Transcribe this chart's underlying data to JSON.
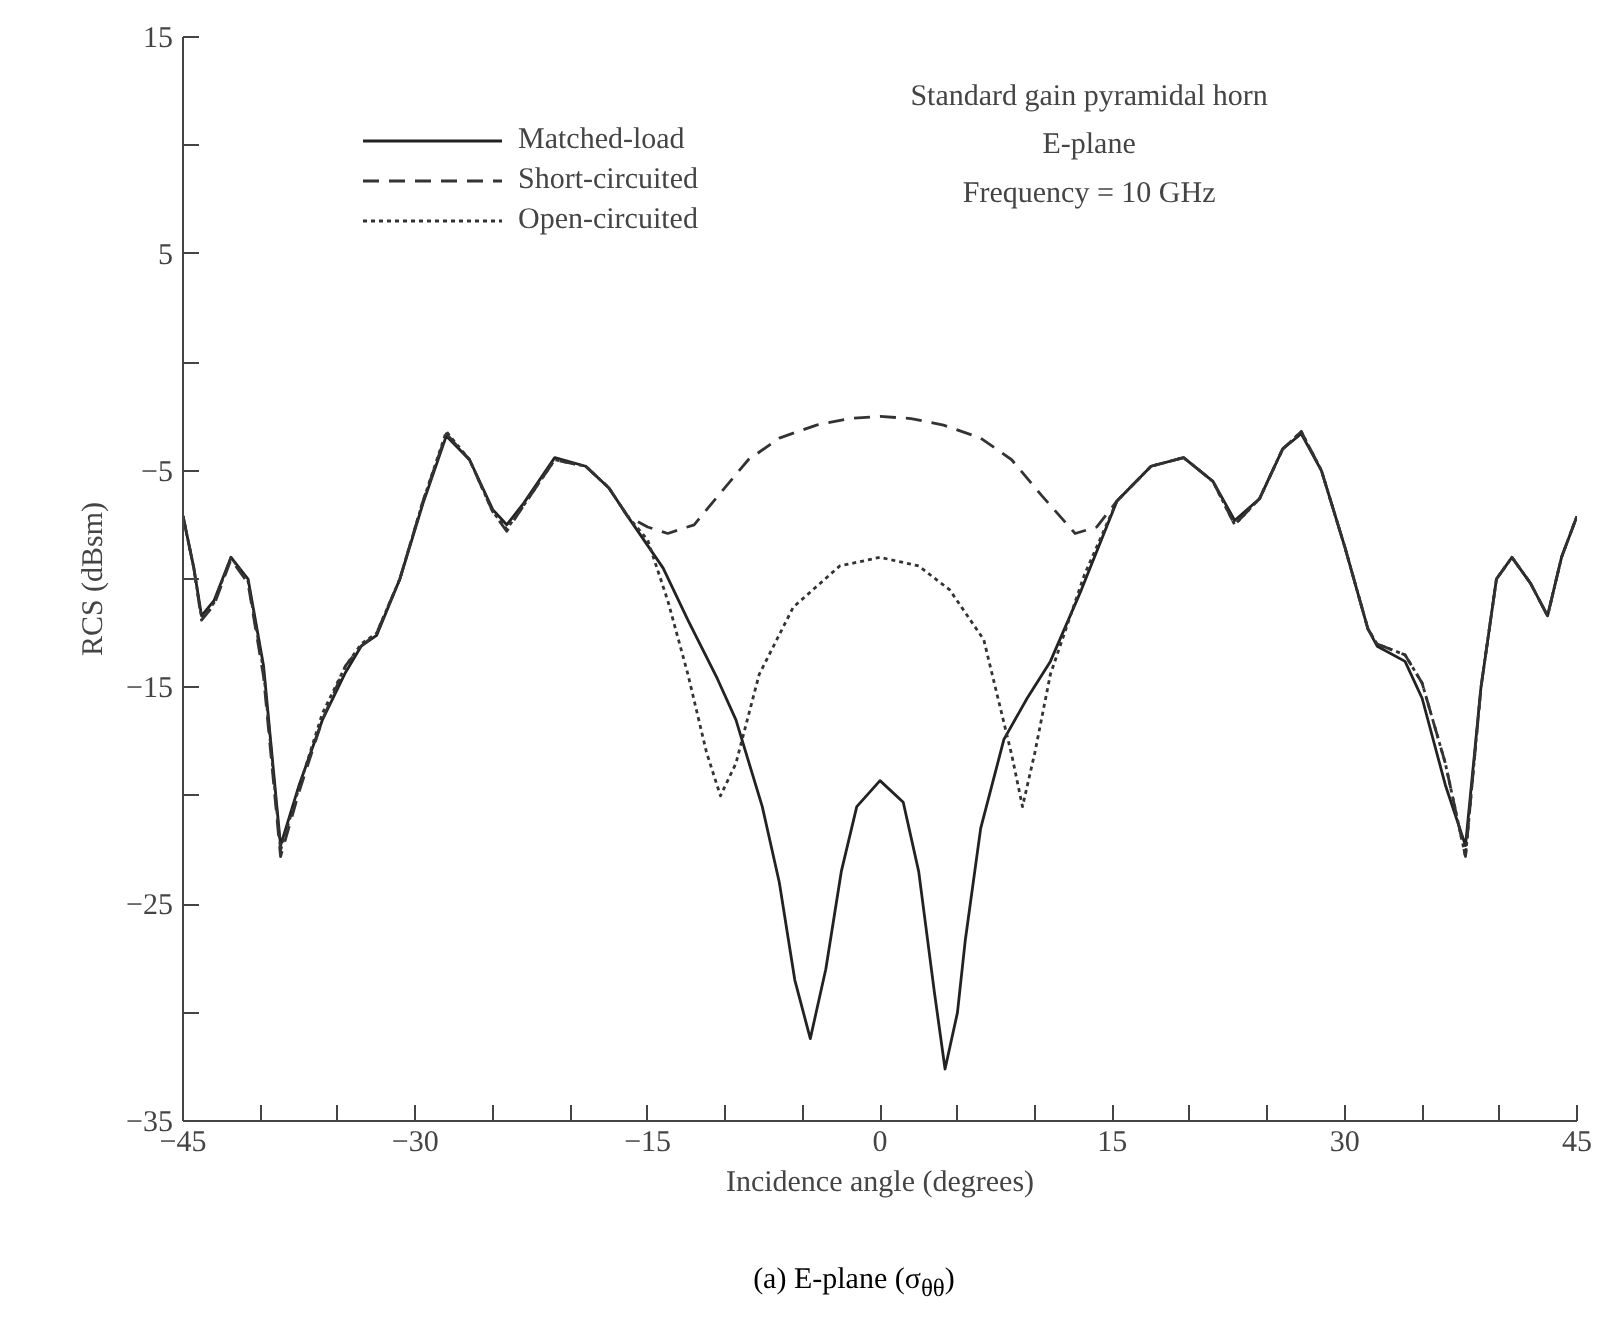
{
  "chart_data": {
    "type": "line",
    "title": "(a) E-plane (σ$_{θθ}$)",
    "xlabel": "Incidence angle (degrees)",
    "ylabel": "RCS (dBsm)",
    "annotations": [
      "Standard gain pyramidal horn",
      "E-plane",
      "Frequency = 10 GHz"
    ],
    "xlim": [
      -45,
      45
    ],
    "ylim": [
      -35,
      15
    ],
    "xticks": [
      -45,
      {
        "value": -40,
        "label": null
      },
      {
        "value": -35,
        "label": null
      },
      -30,
      {
        "value": -25,
        "label": null
      },
      {
        "value": -20,
        "label": null
      },
      -15,
      {
        "value": -10,
        "label": null
      },
      {
        "value": -5,
        "label": null
      },
      0,
      {
        "value": 5,
        "label": null
      },
      {
        "value": 10,
        "label": null
      },
      15,
      {
        "value": 20,
        "label": null
      },
      {
        "value": 25,
        "label": null
      },
      30,
      {
        "value": 35,
        "label": null
      },
      {
        "value": 40,
        "label": null
      },
      45
    ],
    "yticks": [
      -35,
      {
        "value": -30,
        "label": null
      },
      -25,
      {
        "value": -20,
        "label": null
      },
      -15,
      {
        "value": -10,
        "label": null
      },
      -5,
      {
        "value": 0,
        "label": null
      },
      5,
      {
        "value": 10,
        "label": null
      },
      15
    ],
    "grid": false,
    "legend": "top left",
    "marker": "none",
    "series": [
      {
        "name": "Matched-load",
        "color": "#222222",
        "line_style": "solid",
        "x": [
          -45,
          -44.3,
          -43.8,
          -43,
          -41.9,
          -40.8,
          -39.8,
          -38.7,
          -37.5,
          -36,
          -34.5,
          -33.5,
          -32.5,
          -31,
          -29.5,
          -28,
          -26.5,
          -25,
          -24.1,
          -23,
          -21,
          -19,
          -17.5,
          -16.3,
          -14,
          -12.4,
          -10.5,
          -9.3,
          -7.6,
          -6.5,
          -5.5,
          -4.5,
          -3.5,
          -2.5,
          -1.5,
          0,
          1.5,
          2.5,
          3.5,
          4.2,
          5,
          5.5,
          6.5,
          8,
          9.5,
          11,
          13,
          15.3,
          17.5,
          19.6,
          21.5,
          22.9,
          24.5,
          26,
          27.2,
          28.5,
          30,
          31.5,
          32.1,
          33.9,
          35,
          36.5,
          37.8,
          38.8,
          39.8,
          40.8,
          42,
          43.1,
          44,
          45
        ],
        "values": [
          -7.1,
          -9.5,
          -11.7,
          -11.0,
          -9.0,
          -10.0,
          -14.0,
          -22.3,
          -19.5,
          -16.5,
          -14.3,
          -13.1,
          -12.6,
          -10.0,
          -6.5,
          -3.4,
          -4.5,
          -6.8,
          -7.5,
          -6.5,
          -4.4,
          -4.8,
          -5.8,
          -7.1,
          -9.5,
          -11.9,
          -14.6,
          -16.5,
          -20.5,
          -24.0,
          -28.5,
          -31.2,
          -28.0,
          -23.5,
          -20.5,
          -19.3,
          -20.3,
          -23.5,
          -29.0,
          -32.6,
          -30.0,
          -26.7,
          -21.5,
          -17.4,
          -15.5,
          -13.8,
          -10.5,
          -6.4,
          -4.8,
          -4.4,
          -5.5,
          -7.3,
          -6.3,
          -4.0,
          -3.3,
          -5.0,
          -8.5,
          -12.3,
          -13.1,
          -13.8,
          -15.5,
          -19.5,
          -22.3,
          -15.0,
          -10.0,
          -9.0,
          -10.2,
          -11.7,
          -9.0,
          -7.1
        ]
      },
      {
        "name": "Short-circuited",
        "color": "#333333",
        "line_style": "dashed",
        "x": [
          -45,
          -44.3,
          -43.8,
          -43,
          -41.9,
          -40.8,
          -39.8,
          -38.7,
          -37.5,
          -36,
          -34.5,
          -33.5,
          -32.5,
          -31,
          -29.5,
          -28,
          -26.5,
          -25,
          -24.1,
          -23,
          -21,
          -19,
          -17.5,
          -16.3,
          -15,
          -13.7,
          -12,
          -10.5,
          -8.5,
          -6.5,
          -4.1,
          -2,
          0,
          2,
          4.1,
          6.5,
          8.5,
          10.5,
          12.6,
          14,
          15.3,
          17.5,
          19.6,
          21.5,
          22.9,
          24.5,
          26,
          27.2,
          28.5,
          30,
          31.5,
          32.1,
          33.9,
          35,
          36.5,
          37.8,
          38.8,
          39.8,
          40.8,
          42,
          43.1,
          44,
          45
        ],
        "values": [
          -7.1,
          -9.5,
          -11.9,
          -11.2,
          -9.1,
          -10.2,
          -14.5,
          -22.8,
          -19.8,
          -16.5,
          -14.0,
          -13.1,
          -12.5,
          -10.0,
          -6.4,
          -3.3,
          -4.5,
          -6.9,
          -7.8,
          -6.6,
          -4.5,
          -4.8,
          -5.8,
          -7.1,
          -7.6,
          -7.9,
          -7.5,
          -6.2,
          -4.5,
          -3.5,
          -2.9,
          -2.6,
          -2.5,
          -2.6,
          -2.9,
          -3.5,
          -4.5,
          -6.2,
          -7.9,
          -7.6,
          -6.4,
          -4.8,
          -4.4,
          -5.5,
          -7.5,
          -6.3,
          -4.0,
          -3.2,
          -5.0,
          -8.5,
          -12.3,
          -13.0,
          -13.5,
          -14.8,
          -18.5,
          -22.8,
          -15.0,
          -10.0,
          -9.0,
          -10.2,
          -11.7,
          -9.0,
          -7.1
        ]
      },
      {
        "name": "Open-circuited",
        "color": "#333333",
        "line_style": "dotted",
        "x": [
          -45,
          -44.3,
          -43.8,
          -43,
          -41.9,
          -40.8,
          -39.8,
          -38.7,
          -37.5,
          -36,
          -34.5,
          -33.5,
          -32.5,
          -31,
          -29.5,
          -28,
          -26.5,
          -25,
          -24.1,
          -23,
          -21,
          -19,
          -17.5,
          -16.3,
          -15,
          -13.7,
          -12.4,
          -11.2,
          -10.3,
          -9.3,
          -7.8,
          -5.6,
          -2.6,
          0,
          2.5,
          4.5,
          6.7,
          8.5,
          9.2,
          10,
          11,
          13.2,
          15.3,
          17.5,
          19.6,
          21.5,
          22.9,
          24.5,
          26,
          27.2,
          28.5,
          30,
          31.5,
          32.1,
          33.9,
          35,
          36.5,
          37.8,
          38.8,
          39.8,
          40.8,
          42,
          43.1,
          44,
          45
        ],
        "values": [
          -7.1,
          -9.5,
          -11.8,
          -11.1,
          -9.0,
          -10.1,
          -14.2,
          -22.5,
          -19.6,
          -16.2,
          -14.0,
          -13.0,
          -12.5,
          -10.0,
          -6.4,
          -3.2,
          -4.5,
          -6.9,
          -7.7,
          -6.6,
          -4.5,
          -4.8,
          -5.8,
          -7.1,
          -8.2,
          -11.0,
          -14.4,
          -18.0,
          -20.0,
          -18.5,
          -14.4,
          -11.3,
          -9.4,
          -9.0,
          -9.4,
          -10.5,
          -12.8,
          -18.1,
          -20.5,
          -18.0,
          -14.4,
          -9.8,
          -6.4,
          -4.8,
          -4.4,
          -5.5,
          -7.5,
          -6.3,
          -4.0,
          -3.2,
          -5.0,
          -8.5,
          -12.3,
          -13.0,
          -13.5,
          -14.8,
          -18.5,
          -22.8,
          -15.0,
          -10.0,
          -9.0,
          -10.2,
          -11.7,
          -9.0,
          -7.1
        ]
      }
    ]
  }
}
